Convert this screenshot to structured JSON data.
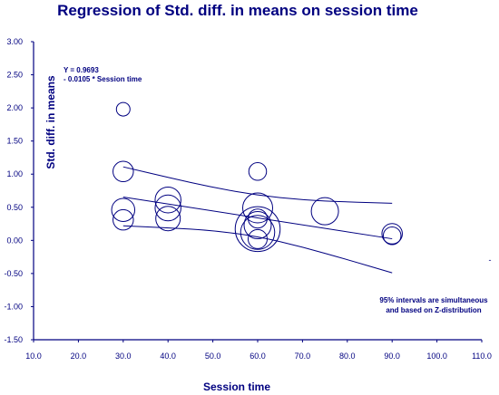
{
  "chart_data": {
    "type": "scatter",
    "title": "Regression of Std. diff. in means on session time",
    "xlabel": "Session time",
    "ylabel": "Std. diff. in means",
    "xlim": [
      10,
      110
    ],
    "ylim": [
      -1.5,
      3.0
    ],
    "xticks": [
      10,
      20,
      30,
      40,
      50,
      60,
      70,
      80,
      90,
      100,
      110
    ],
    "xtick_labels": [
      "10.0",
      "20.0",
      "30.0",
      "40.0",
      "50.0",
      "60.0",
      "70.0",
      "80.0",
      "90.0",
      "100.0",
      "110.0"
    ],
    "yticks": [
      3.0,
      2.5,
      2.0,
      1.5,
      1.0,
      0.5,
      0.0,
      -0.5,
      -1.0,
      -1.5
    ],
    "ytick_labels": [
      "3.00",
      "2.50",
      "2.00",
      "1.50",
      "1.00",
      "0.50",
      "0.00",
      "-0.50",
      "-1.00",
      "-1.50"
    ],
    "grid": false,
    "equation": [
      "Y = 0.9693",
      " - 0.0105 * Session time"
    ],
    "annotation": [
      "95% intervals are simultaneous",
      "and based on Z-distribution"
    ],
    "right_axis_mark": "-",
    "points": [
      {
        "x": 30,
        "y": 1.98,
        "weight": 1.0
      },
      {
        "x": 30,
        "y": 1.04,
        "weight": 1.5
      },
      {
        "x": 30,
        "y": 0.46,
        "weight": 1.7
      },
      {
        "x": 30,
        "y": 0.31,
        "weight": 1.5
      },
      {
        "x": 40,
        "y": 0.61,
        "weight": 1.9
      },
      {
        "x": 40,
        "y": 0.49,
        "weight": 1.9
      },
      {
        "x": 40,
        "y": 0.33,
        "weight": 1.8
      },
      {
        "x": 60,
        "y": 1.04,
        "weight": 1.3
      },
      {
        "x": 60,
        "y": 0.49,
        "weight": 2.2
      },
      {
        "x": 60,
        "y": 0.33,
        "weight": 1.4
      },
      {
        "x": 60,
        "y": 0.23,
        "weight": 2.0
      },
      {
        "x": 60,
        "y": 0.17,
        "weight": 3.3
      },
      {
        "x": 60,
        "y": 0.12,
        "weight": 2.5
      },
      {
        "x": 60,
        "y": 0.02,
        "weight": 1.4
      },
      {
        "x": 75,
        "y": 0.44,
        "weight": 2.0
      },
      {
        "x": 90,
        "y": 0.1,
        "weight": 1.5
      },
      {
        "x": 90,
        "y": 0.07,
        "weight": 1.3
      }
    ],
    "regression": {
      "intercept": 0.9693,
      "slope": -0.0105,
      "x_range": [
        30,
        90
      ]
    },
    "ci_upper": [
      {
        "x": 30,
        "y": 1.11
      },
      {
        "x": 40,
        "y": 0.95
      },
      {
        "x": 50,
        "y": 0.8
      },
      {
        "x": 60,
        "y": 0.68
      },
      {
        "x": 70,
        "y": 0.61
      },
      {
        "x": 80,
        "y": 0.58
      },
      {
        "x": 90,
        "y": 0.56
      }
    ],
    "ci_lower": [
      {
        "x": 30,
        "y": 0.22
      },
      {
        "x": 40,
        "y": 0.19
      },
      {
        "x": 50,
        "y": 0.15
      },
      {
        "x": 60,
        "y": 0.06
      },
      {
        "x": 70,
        "y": -0.1
      },
      {
        "x": 80,
        "y": -0.29
      },
      {
        "x": 90,
        "y": -0.49
      }
    ],
    "colors": {
      "ink": "#000080",
      "background": "#ffffff"
    }
  }
}
